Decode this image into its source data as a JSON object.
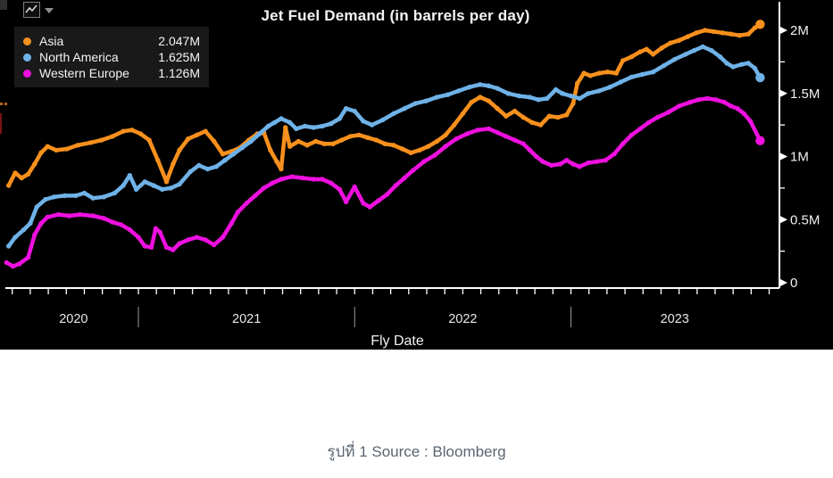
{
  "title": "Jet Fuel Demand (in barrels per day)",
  "toolbar": {
    "chart_button": "line-chart-icon",
    "dropdown_caret": "down"
  },
  "legend": {
    "items": [
      {
        "label": "Asia",
        "value": "2.047M",
        "color": "#F8901D"
      },
      {
        "label": "North America",
        "value": "1.625M",
        "color": "#6FB2E8"
      },
      {
        "label": "Western Europe",
        "value": "1.126M",
        "color": "#EE10DF"
      }
    ]
  },
  "caption": {
    "text": "รูปที่ 1 Source : Bloomberg"
  },
  "chart_data": {
    "type": "line",
    "title": "Jet Fuel Demand (in barrels per day)",
    "xlabel": "Fly Date",
    "ylabel": "",
    "x_unit": "decimal_year",
    "xlim": [
      2020.36,
      2023.96
    ],
    "ylim": [
      0,
      2.3
    ],
    "grid": false,
    "background": "#000000",
    "legend_position": "top-left",
    "axis_color": "#ffffff",
    "y_ticks": [
      {
        "v": 0,
        "label": "0"
      },
      {
        "v": 0.5,
        "label": "0.5M"
      },
      {
        "v": 1,
        "label": "1M"
      },
      {
        "v": 1.5,
        "label": "1.5M"
      },
      {
        "v": 2,
        "label": "2M"
      }
    ],
    "y_minor_ticks": [
      0.25,
      0.75,
      1.25,
      1.75
    ],
    "x_year_labels": [
      {
        "label": "2020",
        "center": 2020.7
      },
      {
        "label": "2021",
        "center": 2021.5
      },
      {
        "label": "2022",
        "center": 2022.5
      },
      {
        "label": "2023",
        "center": 2023.48
      }
    ],
    "x_year_separators": [
      2021.0,
      2022.0,
      2023.0
    ],
    "series": [
      {
        "name": "Asia",
        "color": "#F8901D",
        "last_value_label": "2.047M",
        "points": [
          [
            2020.4,
            0.77
          ],
          [
            2020.43,
            0.87
          ],
          [
            2020.46,
            0.83
          ],
          [
            2020.49,
            0.86
          ],
          [
            2020.52,
            0.94
          ],
          [
            2020.55,
            1.03
          ],
          [
            2020.58,
            1.08
          ],
          [
            2020.62,
            1.05
          ],
          [
            2020.67,
            1.06
          ],
          [
            2020.72,
            1.09
          ],
          [
            2020.78,
            1.11
          ],
          [
            2020.83,
            1.13
          ],
          [
            2020.88,
            1.16
          ],
          [
            2020.93,
            1.2
          ],
          [
            2020.97,
            1.21
          ],
          [
            2021.01,
            1.18
          ],
          [
            2021.05,
            1.13
          ],
          [
            2021.09,
            0.97
          ],
          [
            2021.13,
            0.8
          ],
          [
            2021.16,
            0.94
          ],
          [
            2021.19,
            1.05
          ],
          [
            2021.23,
            1.14
          ],
          [
            2021.27,
            1.17
          ],
          [
            2021.31,
            1.2
          ],
          [
            2021.35,
            1.12
          ],
          [
            2021.39,
            1.02
          ],
          [
            2021.43,
            1.04
          ],
          [
            2021.47,
            1.07
          ],
          [
            2021.51,
            1.13
          ],
          [
            2021.55,
            1.18
          ],
          [
            2021.58,
            1.19
          ],
          [
            2021.61,
            1.05
          ],
          [
            2021.64,
            0.96
          ],
          [
            2021.66,
            0.9
          ],
          [
            2021.68,
            1.23
          ],
          [
            2021.7,
            1.08
          ],
          [
            2021.74,
            1.12
          ],
          [
            2021.78,
            1.09
          ],
          [
            2021.82,
            1.12
          ],
          [
            2021.86,
            1.1
          ],
          [
            2021.9,
            1.1
          ],
          [
            2021.94,
            1.13
          ],
          [
            2021.98,
            1.16
          ],
          [
            2022.02,
            1.17
          ],
          [
            2022.06,
            1.15
          ],
          [
            2022.1,
            1.13
          ],
          [
            2022.14,
            1.1
          ],
          [
            2022.18,
            1.09
          ],
          [
            2022.22,
            1.06
          ],
          [
            2022.26,
            1.03
          ],
          [
            2022.3,
            1.05
          ],
          [
            2022.34,
            1.08
          ],
          [
            2022.38,
            1.12
          ],
          [
            2022.42,
            1.17
          ],
          [
            2022.46,
            1.25
          ],
          [
            2022.5,
            1.34
          ],
          [
            2022.54,
            1.43
          ],
          [
            2022.58,
            1.47
          ],
          [
            2022.62,
            1.44
          ],
          [
            2022.66,
            1.38
          ],
          [
            2022.7,
            1.32
          ],
          [
            2022.74,
            1.36
          ],
          [
            2022.78,
            1.31
          ],
          [
            2022.82,
            1.27
          ],
          [
            2022.86,
            1.25
          ],
          [
            2022.9,
            1.32
          ],
          [
            2022.94,
            1.31
          ],
          [
            2022.98,
            1.33
          ],
          [
            2023.01,
            1.42
          ],
          [
            2023.03,
            1.58
          ],
          [
            2023.06,
            1.66
          ],
          [
            2023.09,
            1.64
          ],
          [
            2023.13,
            1.66
          ],
          [
            2023.17,
            1.67
          ],
          [
            2023.21,
            1.66
          ],
          [
            2023.24,
            1.76
          ],
          [
            2023.28,
            1.79
          ],
          [
            2023.32,
            1.83
          ],
          [
            2023.35,
            1.85
          ],
          [
            2023.38,
            1.81
          ],
          [
            2023.42,
            1.86
          ],
          [
            2023.46,
            1.9
          ],
          [
            2023.5,
            1.92
          ],
          [
            2023.54,
            1.95
          ],
          [
            2023.58,
            1.98
          ],
          [
            2023.62,
            2.0
          ],
          [
            2023.66,
            1.99
          ],
          [
            2023.7,
            1.98
          ],
          [
            2023.74,
            1.97
          ],
          [
            2023.78,
            1.96
          ],
          [
            2023.82,
            1.97
          ],
          [
            2023.85,
            2.02
          ],
          [
            2023.875,
            2.047
          ]
        ]
      },
      {
        "name": "North America",
        "color": "#6FB2E8",
        "last_value_label": "1.625M",
        "points": [
          [
            2020.4,
            0.29
          ],
          [
            2020.43,
            0.36
          ],
          [
            2020.47,
            0.42
          ],
          [
            2020.5,
            0.47
          ],
          [
            2020.53,
            0.6
          ],
          [
            2020.57,
            0.66
          ],
          [
            2020.61,
            0.68
          ],
          [
            2020.66,
            0.69
          ],
          [
            2020.71,
            0.69
          ],
          [
            2020.75,
            0.71
          ],
          [
            2020.79,
            0.67
          ],
          [
            2020.84,
            0.68
          ],
          [
            2020.89,
            0.71
          ],
          [
            2020.93,
            0.77
          ],
          [
            2020.96,
            0.85
          ],
          [
            2020.99,
            0.74
          ],
          [
            2021.03,
            0.8
          ],
          [
            2021.07,
            0.77
          ],
          [
            2021.11,
            0.74
          ],
          [
            2021.15,
            0.75
          ],
          [
            2021.19,
            0.78
          ],
          [
            2021.24,
            0.88
          ],
          [
            2021.28,
            0.93
          ],
          [
            2021.32,
            0.9
          ],
          [
            2021.36,
            0.92
          ],
          [
            2021.4,
            0.97
          ],
          [
            2021.44,
            1.02
          ],
          [
            2021.48,
            1.07
          ],
          [
            2021.52,
            1.12
          ],
          [
            2021.56,
            1.18
          ],
          [
            2021.6,
            1.24
          ],
          [
            2021.63,
            1.27
          ],
          [
            2021.66,
            1.3
          ],
          [
            2021.7,
            1.27
          ],
          [
            2021.73,
            1.22
          ],
          [
            2021.77,
            1.24
          ],
          [
            2021.81,
            1.23
          ],
          [
            2021.85,
            1.24
          ],
          [
            2021.89,
            1.26
          ],
          [
            2021.93,
            1.3
          ],
          [
            2021.96,
            1.38
          ],
          [
            2022.0,
            1.36
          ],
          [
            2022.04,
            1.28
          ],
          [
            2022.08,
            1.25
          ],
          [
            2022.13,
            1.29
          ],
          [
            2022.18,
            1.34
          ],
          [
            2022.23,
            1.38
          ],
          [
            2022.28,
            1.42
          ],
          [
            2022.33,
            1.44
          ],
          [
            2022.38,
            1.47
          ],
          [
            2022.43,
            1.49
          ],
          [
            2022.48,
            1.52
          ],
          [
            2022.53,
            1.55
          ],
          [
            2022.58,
            1.57
          ],
          [
            2022.62,
            1.56
          ],
          [
            2022.66,
            1.54
          ],
          [
            2022.71,
            1.5
          ],
          [
            2022.76,
            1.48
          ],
          [
            2022.81,
            1.47
          ],
          [
            2022.85,
            1.45
          ],
          [
            2022.89,
            1.46
          ],
          [
            2022.93,
            1.53
          ],
          [
            2022.96,
            1.5
          ],
          [
            2023.0,
            1.48
          ],
          [
            2023.04,
            1.46
          ],
          [
            2023.08,
            1.5
          ],
          [
            2023.13,
            1.52
          ],
          [
            2023.18,
            1.55
          ],
          [
            2023.23,
            1.59
          ],
          [
            2023.28,
            1.63
          ],
          [
            2023.33,
            1.65
          ],
          [
            2023.38,
            1.67
          ],
          [
            2023.43,
            1.72
          ],
          [
            2023.48,
            1.77
          ],
          [
            2023.53,
            1.81
          ],
          [
            2023.57,
            1.84
          ],
          [
            2023.61,
            1.87
          ],
          [
            2023.65,
            1.84
          ],
          [
            2023.69,
            1.79
          ],
          [
            2023.72,
            1.74
          ],
          [
            2023.75,
            1.71
          ],
          [
            2023.79,
            1.73
          ],
          [
            2023.82,
            1.74
          ],
          [
            2023.85,
            1.7
          ],
          [
            2023.875,
            1.625
          ]
        ]
      },
      {
        "name": "Western Europe",
        "color": "#EE10DF",
        "last_value_label": "1.126M",
        "points": [
          [
            2020.39,
            0.16
          ],
          [
            2020.42,
            0.13
          ],
          [
            2020.45,
            0.15
          ],
          [
            2020.49,
            0.2
          ],
          [
            2020.52,
            0.38
          ],
          [
            2020.55,
            0.47
          ],
          [
            2020.58,
            0.52
          ],
          [
            2020.63,
            0.54
          ],
          [
            2020.68,
            0.53
          ],
          [
            2020.73,
            0.54
          ],
          [
            2020.79,
            0.53
          ],
          [
            2020.84,
            0.51
          ],
          [
            2020.88,
            0.48
          ],
          [
            2020.92,
            0.46
          ],
          [
            2020.96,
            0.42
          ],
          [
            2021.0,
            0.36
          ],
          [
            2021.03,
            0.29
          ],
          [
            2021.06,
            0.28
          ],
          [
            2021.08,
            0.43
          ],
          [
            2021.1,
            0.4
          ],
          [
            2021.13,
            0.28
          ],
          [
            2021.16,
            0.26
          ],
          [
            2021.19,
            0.31
          ],
          [
            2021.23,
            0.34
          ],
          [
            2021.27,
            0.36
          ],
          [
            2021.31,
            0.34
          ],
          [
            2021.35,
            0.3
          ],
          [
            2021.39,
            0.36
          ],
          [
            2021.43,
            0.47
          ],
          [
            2021.46,
            0.56
          ],
          [
            2021.5,
            0.63
          ],
          [
            2021.54,
            0.69
          ],
          [
            2021.58,
            0.75
          ],
          [
            2021.62,
            0.79
          ],
          [
            2021.66,
            0.82
          ],
          [
            2021.71,
            0.84
          ],
          [
            2021.76,
            0.83
          ],
          [
            2021.81,
            0.82
          ],
          [
            2021.85,
            0.82
          ],
          [
            2021.89,
            0.79
          ],
          [
            2021.93,
            0.74
          ],
          [
            2021.96,
            0.64
          ],
          [
            2022.0,
            0.76
          ],
          [
            2022.04,
            0.63
          ],
          [
            2022.07,
            0.6
          ],
          [
            2022.11,
            0.65
          ],
          [
            2022.15,
            0.7
          ],
          [
            2022.19,
            0.77
          ],
          [
            2022.23,
            0.83
          ],
          [
            2022.27,
            0.89
          ],
          [
            2022.32,
            0.96
          ],
          [
            2022.37,
            1.01
          ],
          [
            2022.42,
            1.08
          ],
          [
            2022.47,
            1.14
          ],
          [
            2022.52,
            1.18
          ],
          [
            2022.57,
            1.21
          ],
          [
            2022.62,
            1.22
          ],
          [
            2022.66,
            1.19
          ],
          [
            2022.7,
            1.16
          ],
          [
            2022.74,
            1.13
          ],
          [
            2022.78,
            1.1
          ],
          [
            2022.81,
            1.05
          ],
          [
            2022.84,
            1.0
          ],
          [
            2022.87,
            0.96
          ],
          [
            2022.91,
            0.93
          ],
          [
            2022.95,
            0.94
          ],
          [
            2022.98,
            0.97
          ],
          [
            2023.01,
            0.94
          ],
          [
            2023.04,
            0.92
          ],
          [
            2023.08,
            0.95
          ],
          [
            2023.12,
            0.96
          ],
          [
            2023.16,
            0.97
          ],
          [
            2023.2,
            1.02
          ],
          [
            2023.24,
            1.1
          ],
          [
            2023.28,
            1.17
          ],
          [
            2023.32,
            1.22
          ],
          [
            2023.36,
            1.27
          ],
          [
            2023.4,
            1.31
          ],
          [
            2023.45,
            1.35
          ],
          [
            2023.5,
            1.4
          ],
          [
            2023.55,
            1.43
          ],
          [
            2023.59,
            1.45
          ],
          [
            2023.63,
            1.46
          ],
          [
            2023.67,
            1.45
          ],
          [
            2023.71,
            1.43
          ],
          [
            2023.74,
            1.4
          ],
          [
            2023.77,
            1.38
          ],
          [
            2023.8,
            1.34
          ],
          [
            2023.83,
            1.28
          ],
          [
            2023.875,
            1.126
          ]
        ]
      }
    ]
  }
}
